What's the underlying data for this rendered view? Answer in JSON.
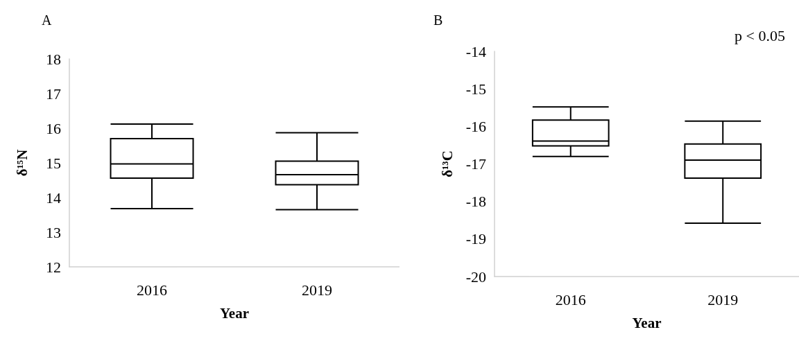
{
  "chart_data": [
    {
      "type": "box",
      "title": "A",
      "xlabel": "Year",
      "ylabel": "δ¹⁵N",
      "categories": [
        "2016",
        "2019"
      ],
      "boxes": [
        {
          "low": 13.68,
          "q1": 14.56,
          "median": 14.97,
          "q3": 15.7,
          "high": 16.12
        },
        {
          "low": 13.65,
          "q1": 14.37,
          "median": 14.66,
          "q3": 15.05,
          "high": 15.87
        }
      ],
      "color": "#000000",
      "ylim": [
        12,
        18
      ],
      "yticks": [
        12,
        13,
        14,
        15,
        16,
        17,
        18
      ],
      "grid": false
    },
    {
      "type": "box",
      "title": "B",
      "xlabel": "Year",
      "ylabel": "δ¹³C",
      "categories": [
        "2016",
        "2019"
      ],
      "boxes": [
        {
          "low": -16.8,
          "q1": -16.52,
          "median": -16.39,
          "q3": -15.83,
          "high": -15.48
        },
        {
          "low": -18.58,
          "q1": -17.38,
          "median": -16.9,
          "q3": -16.47,
          "high": -15.86
        }
      ],
      "color": "#000000",
      "ylim": [
        -20,
        -14
      ],
      "yticks": [
        -20,
        -19,
        -18,
        -17,
        -16,
        -15,
        -14
      ],
      "grid": false,
      "annotations": [
        "p < 0.05"
      ]
    }
  ]
}
